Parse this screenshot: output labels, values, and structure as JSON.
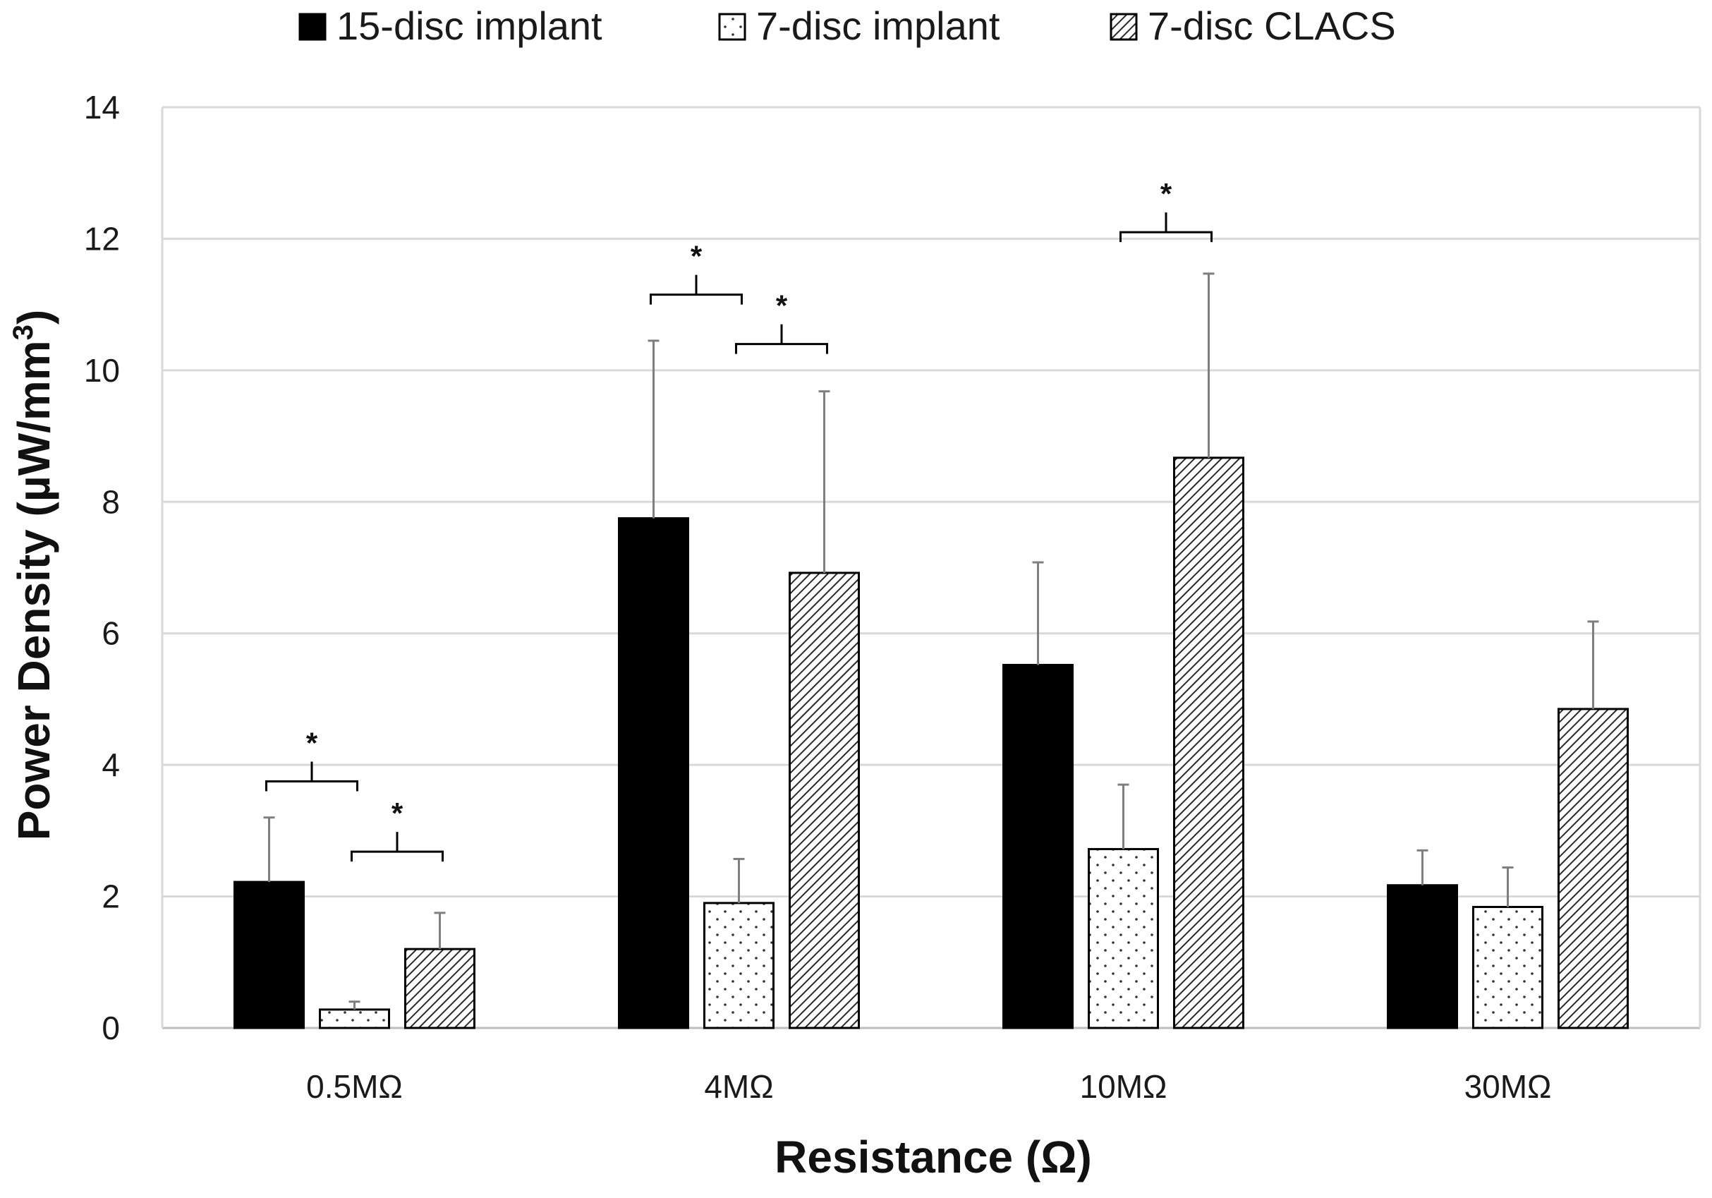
{
  "chart_data": {
    "type": "bar",
    "title": "",
    "xlabel": "Resistance (Ω)",
    "ylabel": "Power Density (µW/mm³)",
    "ylabel_main": "Power Density (µW/mm",
    "ylabel_sup": "3",
    "ylabel_close": ")",
    "ylim": [
      0,
      14
    ],
    "yticks": [
      0,
      2,
      4,
      6,
      8,
      10,
      12,
      14
    ],
    "categories": [
      "0.5MΩ",
      "4MΩ",
      "10MΩ",
      "30MΩ"
    ],
    "grid": true,
    "legend_position": "top-center",
    "series": [
      {
        "name": "15-disc implant",
        "fill": "solid",
        "color": "#000000",
        "values": [
          2.22,
          7.75,
          5.52,
          2.17
        ],
        "error_upper": [
          3.2,
          10.45,
          7.08,
          2.7
        ]
      },
      {
        "name": "7-disc implant",
        "fill": "dotted",
        "color": "#ffffff",
        "values": [
          0.28,
          1.9,
          2.72,
          1.84
        ],
        "error_upper": [
          0.4,
          2.57,
          3.7,
          2.44
        ]
      },
      {
        "name": "7-disc CLACS",
        "fill": "hatched",
        "color": "#555555",
        "values": [
          1.2,
          6.92,
          8.67,
          4.85
        ],
        "error_upper": [
          1.75,
          9.68,
          11.47,
          6.18
        ]
      }
    ],
    "significance": [
      {
        "category": 0,
        "from_series": 0,
        "to_series": 1,
        "level": 3.75,
        "label": "*"
      },
      {
        "category": 0,
        "from_series": 1,
        "to_series": 2,
        "level": 2.68,
        "label": "*"
      },
      {
        "category": 1,
        "from_series": 0,
        "to_series": 1,
        "level": 11.15,
        "label": "*"
      },
      {
        "category": 1,
        "from_series": 1,
        "to_series": 2,
        "level": 10.4,
        "label": "*"
      },
      {
        "category": 2,
        "from_series": 1,
        "to_series": 2,
        "level": 12.1,
        "label": "*"
      }
    ]
  }
}
